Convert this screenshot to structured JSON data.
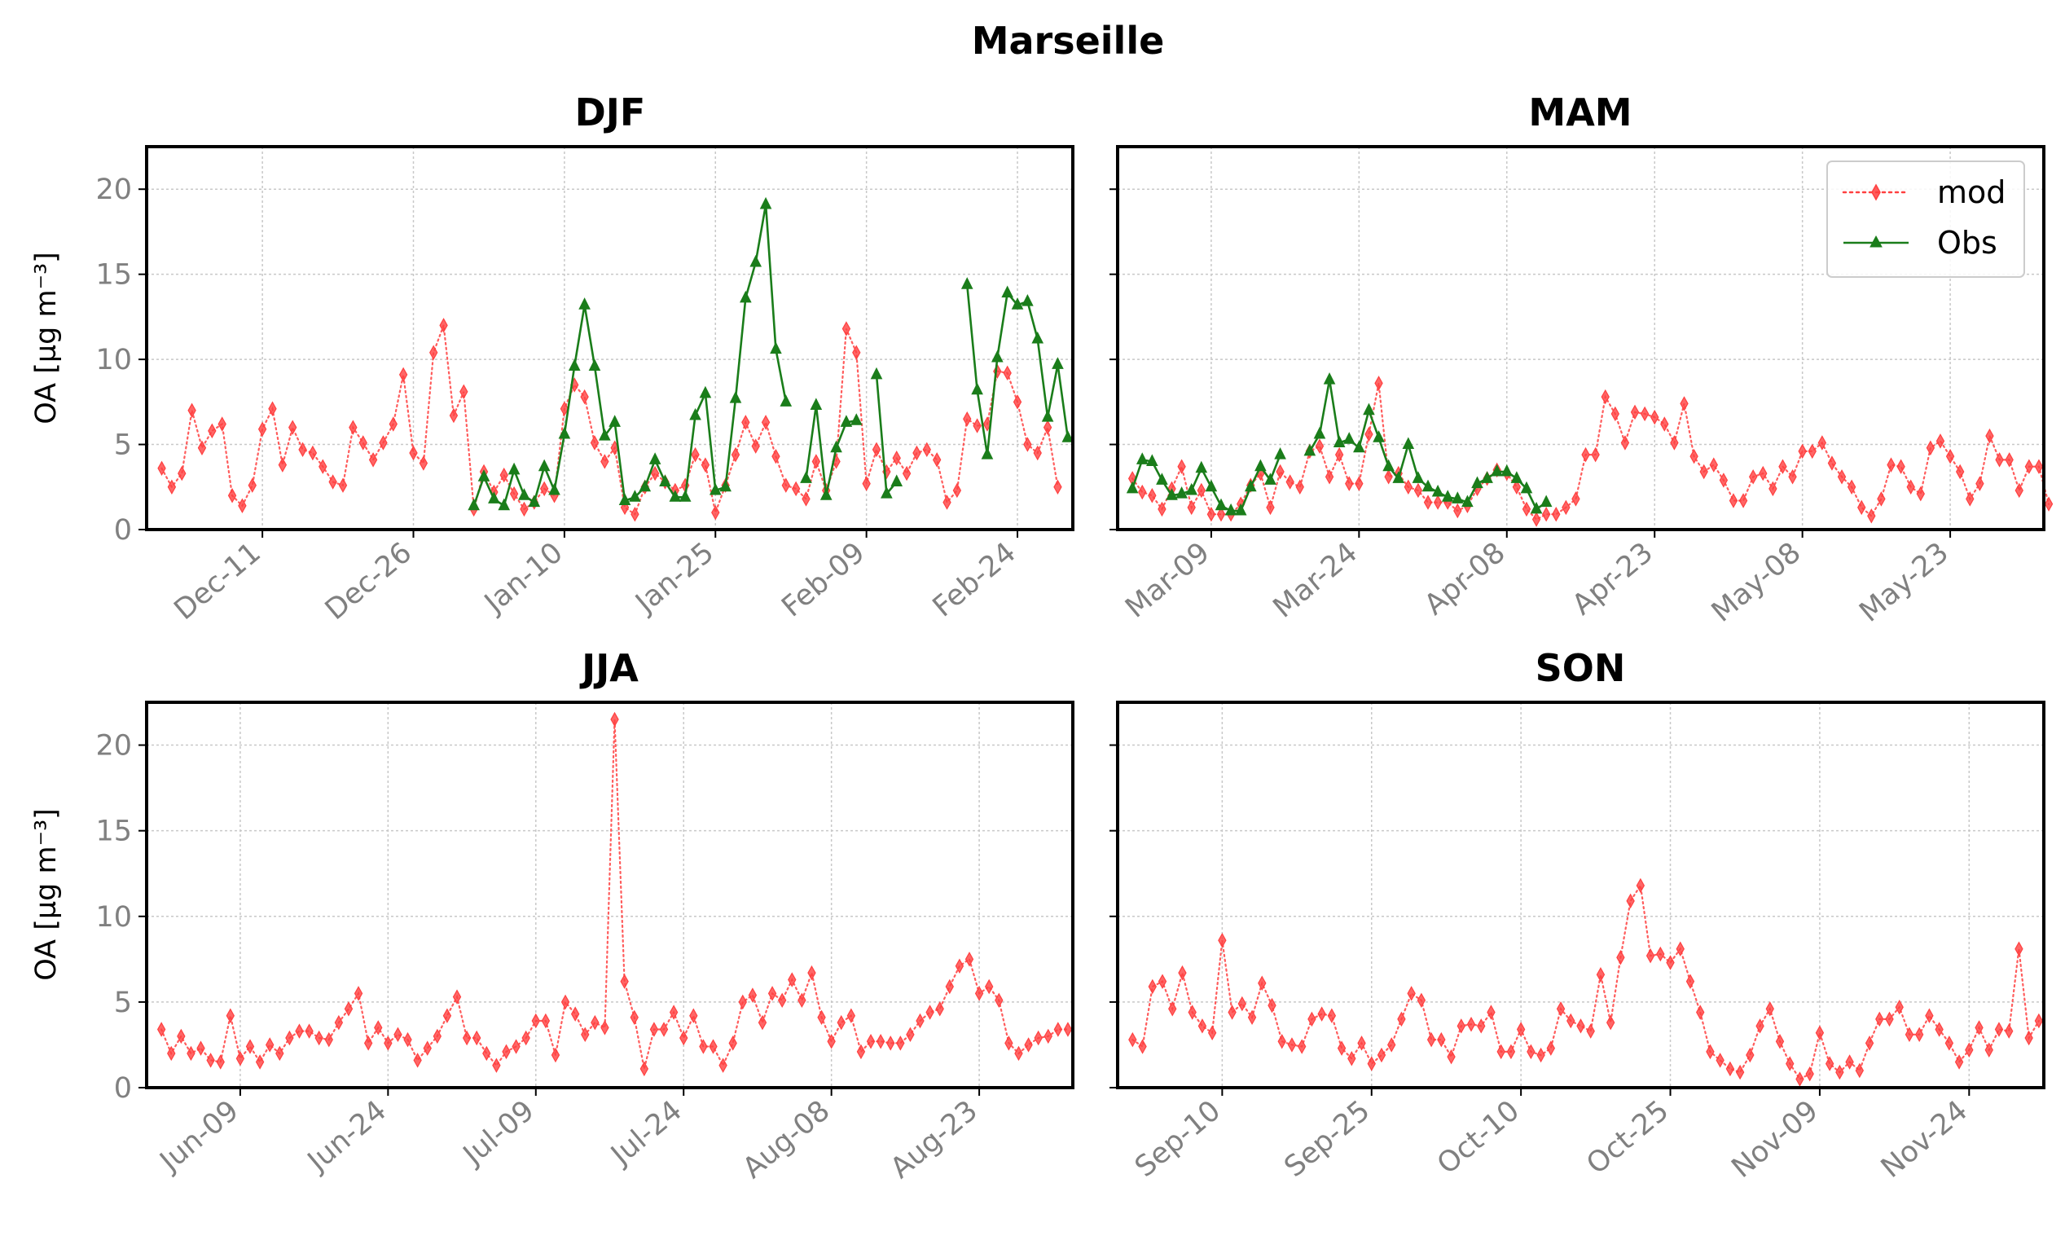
{
  "figure_title": "Marseille",
  "legend": {
    "mod_label": "mod",
    "obs_label": "Obs",
    "placement": "upper-right of MAM panel"
  },
  "colors": {
    "mod": "#ff4040",
    "obs": "#1a7d1a",
    "grid": "#c8c8c8",
    "tick_label": "#808080"
  },
  "chart_data": [
    {
      "type": "line",
      "title": "DJF",
      "ylabel": "OA [µg m⁻³]",
      "ylim": [
        0,
        22.5
      ],
      "yticks": [
        0,
        5,
        10,
        15,
        20
      ],
      "xlim": [
        "2019-12-01",
        "2020-02-28"
      ],
      "xtick_dates": [
        "2019-12-11",
        "2019-12-26",
        "2020-01-10",
        "2020-01-25",
        "2020-02-09",
        "2020-02-24"
      ],
      "xtick_labels": [
        "Dec-11",
        "Dec-26",
        "Jan-10",
        "Jan-25",
        "Feb-09",
        "Feb-24"
      ],
      "grid": true,
      "series": [
        {
          "name": "mod",
          "style": "dotted",
          "marker": "diamond",
          "start": "2019-12-01",
          "values": [
            3.6,
            2.5,
            3.3,
            7.0,
            4.8,
            5.8,
            6.2,
            2.0,
            1.4,
            2.6,
            5.9,
            7.1,
            3.8,
            6.0,
            4.7,
            4.5,
            3.7,
            2.8,
            2.6,
            6.0,
            5.1,
            4.1,
            5.1,
            6.2,
            9.1,
            4.5,
            3.9,
            10.4,
            12.0,
            6.7,
            8.1,
            1.2,
            3.4,
            2.2,
            3.2,
            2.1,
            1.2,
            1.6,
            2.4,
            2.0,
            7.1,
            8.5,
            7.8,
            5.1,
            4.0,
            4.8,
            1.3,
            0.9,
            2.5,
            3.3,
            2.8,
            2.3,
            2.6,
            4.4,
            3.8,
            1.0,
            2.6,
            4.4,
            6.3,
            4.9,
            6.3,
            4.3,
            2.6,
            2.4,
            1.8,
            4.0,
            2.3,
            4.0,
            11.8,
            10.4,
            2.7,
            4.7,
            3.4,
            4.2,
            3.3,
            4.5,
            4.7,
            4.1,
            1.6,
            2.3,
            6.5,
            6.1,
            6.2,
            9.3,
            9.2,
            7.5,
            5.0,
            4.5,
            6.0,
            2.5
          ]
        },
        {
          "name": "Obs",
          "style": "solid",
          "marker": "triangle",
          "start": "2019-12-01",
          "values": [
            null,
            null,
            null,
            null,
            null,
            null,
            null,
            null,
            null,
            null,
            null,
            null,
            null,
            null,
            null,
            null,
            null,
            null,
            null,
            null,
            null,
            null,
            null,
            null,
            null,
            null,
            null,
            null,
            null,
            null,
            null,
            1.4,
            3.1,
            1.8,
            1.4,
            3.5,
            2.0,
            1.6,
            3.7,
            2.3,
            5.6,
            9.6,
            13.2,
            9.6,
            5.5,
            6.3,
            1.7,
            1.9,
            2.5,
            4.1,
            2.8,
            1.9,
            1.9,
            6.7,
            8.0,
            2.3,
            2.5,
            7.7,
            13.6,
            15.7,
            19.1,
            10.6,
            7.5,
            null,
            3.0,
            7.3,
            2.0,
            4.8,
            6.3,
            6.4,
            null,
            9.1,
            2.1,
            2.8,
            null,
            null,
            null,
            null,
            null,
            null,
            14.4,
            8.2,
            4.4,
            10.1,
            13.9,
            13.2,
            13.4,
            11.2,
            6.6,
            9.7,
            5.4
          ]
        }
      ]
    },
    {
      "type": "line",
      "title": "MAM",
      "ylabel": "",
      "ylim": [
        0,
        22.5
      ],
      "yticks": [
        0,
        5,
        10,
        15,
        20
      ],
      "xlim": [
        "2020-03-01",
        "2020-05-31"
      ],
      "xtick_dates": [
        "2020-03-09",
        "2020-03-24",
        "2020-04-08",
        "2020-04-23",
        "2020-05-08",
        "2020-05-23"
      ],
      "xtick_labels": [
        "Mar-09",
        "Mar-24",
        "Apr-08",
        "Apr-23",
        "May-08",
        "May-23"
      ],
      "grid": true,
      "series": [
        {
          "name": "mod",
          "style": "dotted",
          "marker": "diamond",
          "start": "2020-03-01",
          "values": [
            3.0,
            2.2,
            2.0,
            1.2,
            2.4,
            3.7,
            1.3,
            2.3,
            0.9,
            0.9,
            0.9,
            1.5,
            2.6,
            3.3,
            1.3,
            3.4,
            2.8,
            2.5,
            4.6,
            4.9,
            3.1,
            4.4,
            2.7,
            2.7,
            5.6,
            8.6,
            3.1,
            3.3,
            2.5,
            2.3,
            1.6,
            1.6,
            1.6,
            1.1,
            1.4,
            2.4,
            3.0,
            3.5,
            3.3,
            2.5,
            1.2,
            0.6,
            0.9,
            0.9,
            1.3,
            1.8,
            4.4,
            4.4,
            7.8,
            6.8,
            5.1,
            6.9,
            6.8,
            6.6,
            6.2,
            5.1,
            7.4,
            4.3,
            3.4,
            3.8,
            2.9,
            1.7,
            1.7,
            3.1,
            3.3,
            2.4,
            3.7,
            3.1,
            4.6,
            4.6,
            5.1,
            3.9,
            3.1,
            2.5,
            1.3,
            0.8,
            1.8,
            3.8,
            3.7,
            2.5,
            2.1,
            4.8,
            5.2,
            4.3,
            3.4,
            1.8,
            2.7,
            5.5,
            4.1,
            4.1,
            2.3,
            3.7,
            3.7,
            1.5
          ]
        },
        {
          "name": "Obs",
          "style": "solid",
          "marker": "triangle",
          "start": "2020-03-01",
          "values": [
            2.4,
            4.1,
            4.0,
            2.9,
            2.0,
            2.1,
            2.3,
            3.6,
            2.5,
            1.4,
            1.1,
            1.1,
            2.5,
            3.7,
            2.9,
            4.4,
            null,
            null,
            4.6,
            5.6,
            8.8,
            5.1,
            5.3,
            4.8,
            7.0,
            5.4,
            3.7,
            3.0,
            5.0,
            3.0,
            2.5,
            2.2,
            1.9,
            1.8,
            1.6,
            2.7,
            3.0,
            3.4,
            3.4,
            3.0,
            2.4,
            1.2,
            1.6
          ]
        }
      ]
    },
    {
      "type": "line",
      "title": "JJA",
      "ylabel": "OA [µg m⁻³]",
      "ylim": [
        0,
        22.5
      ],
      "yticks": [
        0,
        5,
        10,
        15,
        20
      ],
      "xlim": [
        "2020-06-01",
        "2020-08-31"
      ],
      "xtick_dates": [
        "2020-06-09",
        "2020-06-24",
        "2020-07-09",
        "2020-07-24",
        "2020-08-08",
        "2020-08-23"
      ],
      "xtick_labels": [
        "Jun-09",
        "Jun-24",
        "Jul-09",
        "Jul-24",
        "Aug-08",
        "Aug-23"
      ],
      "grid": true,
      "series": [
        {
          "name": "mod",
          "style": "dotted",
          "marker": "diamond",
          "start": "2020-06-01",
          "values": [
            3.4,
            2.0,
            3.0,
            2.0,
            2.3,
            1.6,
            1.5,
            4.2,
            1.7,
            2.4,
            1.5,
            2.5,
            2.0,
            2.9,
            3.3,
            3.3,
            2.9,
            2.8,
            3.8,
            4.6,
            5.5,
            2.6,
            3.5,
            2.6,
            3.1,
            2.8,
            1.6,
            2.3,
            3.0,
            4.2,
            5.3,
            2.9,
            2.9,
            2.0,
            1.3,
            2.1,
            2.4,
            2.9,
            3.9,
            3.9,
            1.9,
            5.0,
            4.3,
            3.1,
            3.8,
            3.5,
            21.5,
            6.2,
            4.1,
            1.1,
            3.4,
            3.4,
            4.4,
            2.9,
            4.2,
            2.4,
            2.4,
            1.3,
            2.6,
            5.0,
            5.4,
            3.8,
            5.5,
            5.1,
            6.3,
            5.1,
            6.7,
            4.1,
            2.7,
            3.8,
            4.2,
            2.1,
            2.7,
            2.7,
            2.6,
            2.6,
            3.1,
            3.9,
            4.4,
            4.6,
            5.9,
            7.1,
            7.5,
            5.5,
            5.9,
            5.1,
            2.6,
            2.0,
            2.5,
            2.9,
            3.0,
            3.4,
            3.4
          ]
        }
      ]
    },
    {
      "type": "line",
      "title": "SON",
      "ylabel": "",
      "ylim": [
        0,
        22.5
      ],
      "yticks": [
        0,
        5,
        10,
        15,
        20
      ],
      "xlim": [
        "2020-09-01",
        "2020-11-30"
      ],
      "xtick_dates": [
        "2020-09-10",
        "2020-09-25",
        "2020-10-10",
        "2020-10-25",
        "2020-11-09",
        "2020-11-24"
      ],
      "xtick_labels": [
        "Sep-10",
        "Sep-25",
        "Oct-10",
        "Oct-25",
        "Nov-09",
        "Nov-24"
      ],
      "grid": true,
      "series": [
        {
          "name": "mod",
          "style": "dotted",
          "marker": "diamond",
          "start": "2020-09-01",
          "values": [
            2.8,
            2.4,
            5.9,
            6.2,
            4.6,
            6.7,
            4.4,
            3.6,
            3.2,
            8.6,
            4.4,
            4.9,
            4.1,
            6.1,
            4.8,
            2.7,
            2.5,
            2.4,
            4.0,
            4.3,
            4.2,
            2.3,
            1.7,
            2.6,
            1.4,
            1.9,
            2.5,
            4.0,
            5.5,
            5.1,
            2.8,
            2.8,
            1.8,
            3.6,
            3.7,
            3.6,
            4.4,
            2.1,
            2.1,
            3.4,
            2.1,
            1.9,
            2.3,
            4.6,
            3.9,
            3.6,
            3.3,
            6.6,
            3.8,
            7.6,
            10.9,
            11.8,
            7.7,
            7.8,
            7.3,
            8.1,
            6.2,
            4.4,
            2.1,
            1.6,
            1.1,
            0.9,
            1.9,
            3.6,
            4.6,
            2.7,
            1.4,
            0.5,
            0.8,
            3.2,
            1.4,
            0.9,
            1.5,
            1.0,
            2.6,
            4.0,
            4.0,
            4.7,
            3.1,
            3.1,
            4.2,
            3.4,
            2.6,
            1.5,
            2.2,
            3.5,
            2.2,
            3.4,
            3.3,
            8.1,
            2.9,
            3.9
          ]
        }
      ]
    }
  ]
}
